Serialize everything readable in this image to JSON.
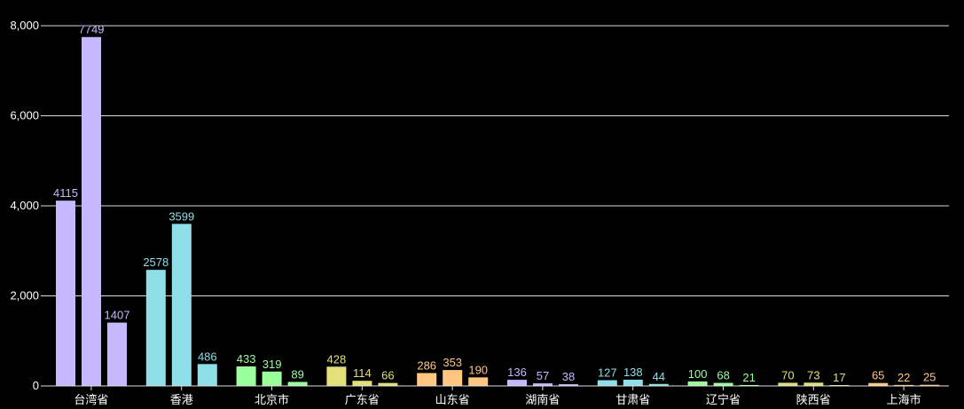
{
  "chart_data": {
    "type": "bar",
    "title": "",
    "xlabel": "",
    "ylabel": "",
    "ylim": [
      0,
      8000
    ],
    "yticks": [
      0,
      2000,
      4000,
      6000,
      8000
    ],
    "ytick_labels": [
      "0",
      "2,000",
      "4,000",
      "6,000",
      "8,000"
    ],
    "grid": true,
    "legend": "none",
    "groups": [
      {
        "category": "台湾省",
        "values": [
          4115,
          7749,
          1407
        ],
        "color": "#c5b8ff"
      },
      {
        "category": "香港",
        "values": [
          2578,
          3599,
          486
        ],
        "color": "#8fdfe8"
      },
      {
        "category": "北京市",
        "values": [
          433,
          319,
          89
        ],
        "color": "#9bff9b"
      },
      {
        "category": "广东省",
        "values": [
          428,
          114,
          66
        ],
        "color": "#e3e07a"
      },
      {
        "category": "山东省",
        "values": [
          286,
          353,
          190
        ],
        "color": "#ffc781"
      },
      {
        "category": "湖南省",
        "values": [
          136,
          57,
          38
        ],
        "color": "#c5b8ff"
      },
      {
        "category": "甘肃省",
        "values": [
          127,
          138,
          44
        ],
        "color": "#8fdfe8"
      },
      {
        "category": "辽宁省",
        "values": [
          100,
          68,
          21
        ],
        "color": "#9bff9b"
      },
      {
        "category": "陕西省",
        "values": [
          70,
          73,
          17
        ],
        "color": "#e3e07a"
      },
      {
        "category": "上海市",
        "values": [
          65,
          22,
          25
        ],
        "color": "#ffc781"
      }
    ]
  }
}
